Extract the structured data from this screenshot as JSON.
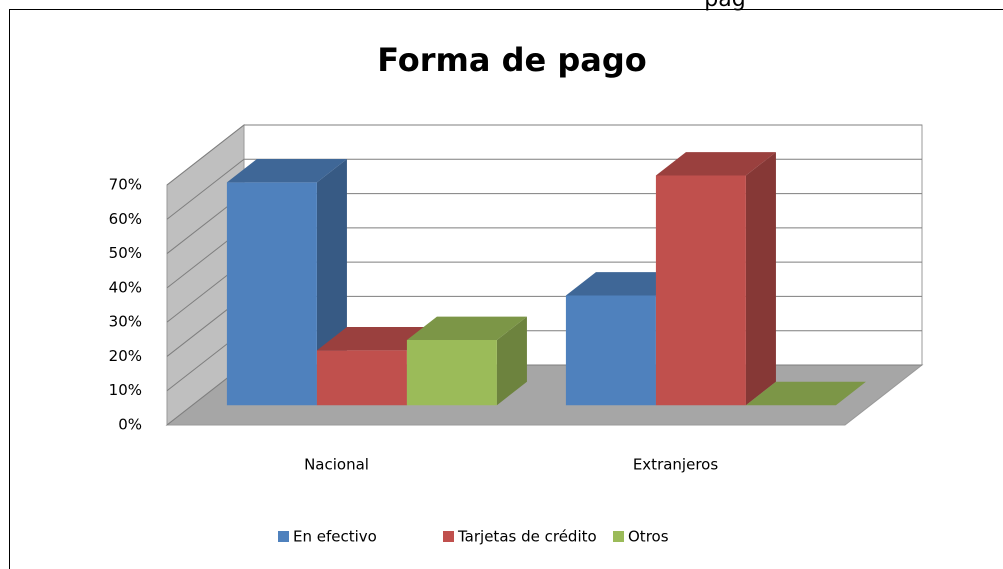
{
  "page_fragment": "pag",
  "chart_data": {
    "type": "bar3d",
    "title": "Forma de pago",
    "categories": [
      "Nacional",
      "Extranjeros"
    ],
    "series": [
      {
        "name": "En efectivo",
        "color": "#4f81bd",
        "values": [
          65,
          32
        ]
      },
      {
        "name": "Tarjetas de crédito",
        "color": "#c0504d",
        "values": [
          16,
          67
        ]
      },
      {
        "name": "Otros",
        "color": "#9bbb59",
        "values": [
          19,
          0
        ]
      }
    ],
    "ylim": [
      0,
      70
    ],
    "yticks": [
      {
        "value": 0,
        "label": "0%"
      },
      {
        "value": 10,
        "label": "10%"
      },
      {
        "value": 20,
        "label": "20%"
      },
      {
        "value": 30,
        "label": "30%"
      },
      {
        "value": 40,
        "label": "40%"
      },
      {
        "value": 50,
        "label": "50%"
      },
      {
        "value": 60,
        "label": "60%"
      },
      {
        "value": 70,
        "label": "70%"
      }
    ],
    "grid": true,
    "legend": "bottom"
  }
}
